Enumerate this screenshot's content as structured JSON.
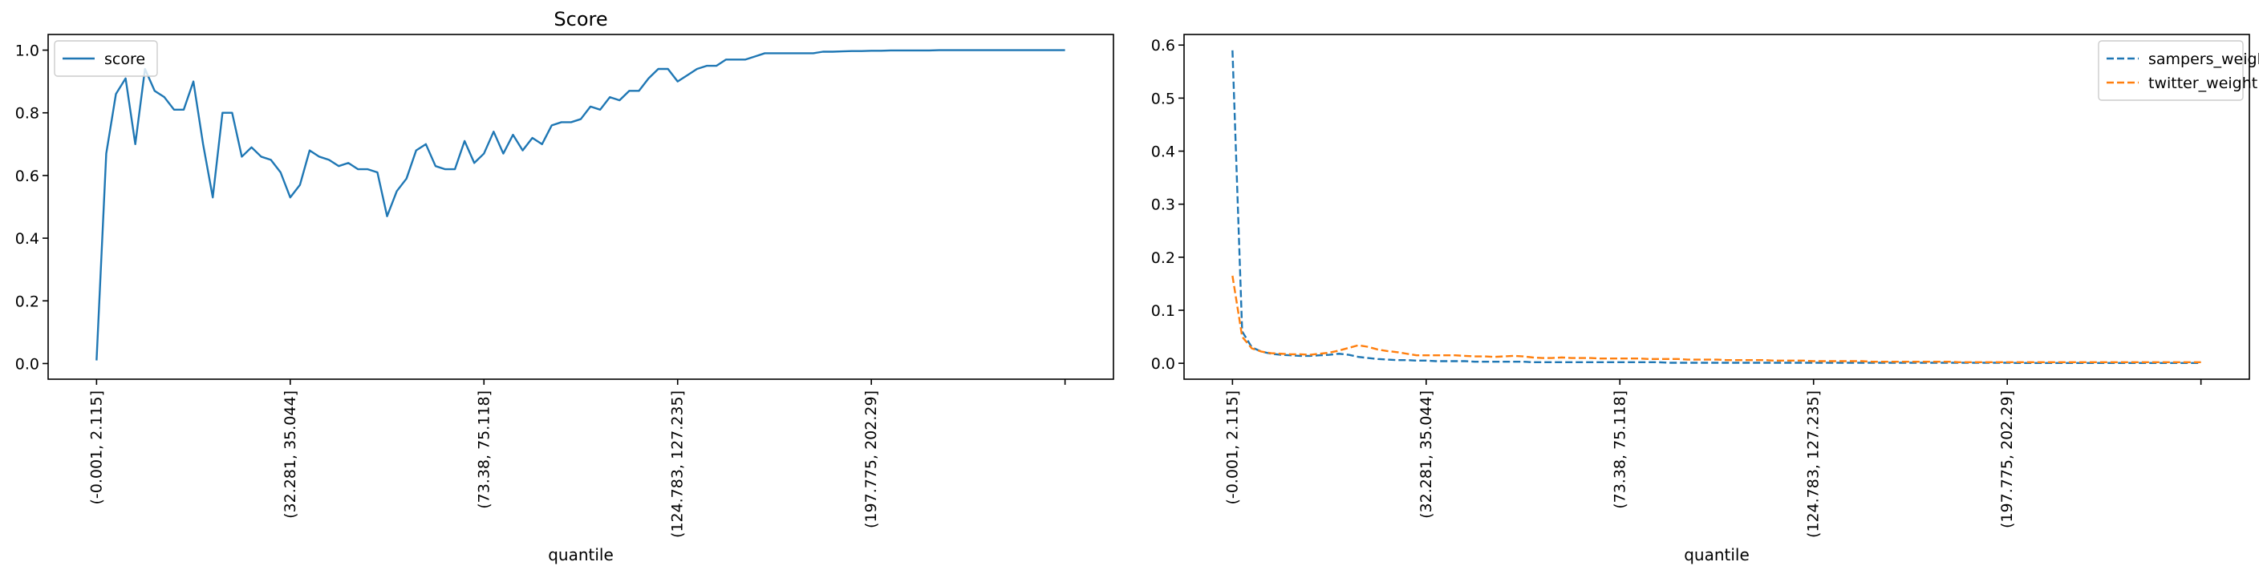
{
  "chart_data": [
    {
      "type": "line",
      "title": "Score",
      "xlabel": "quantile",
      "ylabel": "",
      "xlim": [
        -5,
        105
      ],
      "ylim": [
        -0.05,
        1.05
      ],
      "yticks": [
        0.0,
        0.2,
        0.4,
        0.6,
        0.8,
        1.0
      ],
      "ytick_labels": [
        "0.0",
        "0.2",
        "0.4",
        "0.6",
        "0.8",
        "1.0"
      ],
      "xtick_positions": [
        0,
        20,
        40,
        60,
        80,
        100
      ],
      "xtick_labels": [
        "(-0.001, 2.115]",
        "(32.281, 35.044]",
        "(73.38, 75.118]",
        "(124.783, 127.235]",
        "(197.775, 202.29]",
        ""
      ],
      "legend": {
        "position": "upper left",
        "entries": [
          "score"
        ]
      },
      "series": [
        {
          "name": "score",
          "color": "#1f77b4",
          "dash": "solid",
          "values": [
            0.01,
            0.67,
            0.86,
            0.91,
            0.7,
            0.94,
            0.87,
            0.85,
            0.81,
            0.81,
            0.9,
            0.7,
            0.53,
            0.8,
            0.8,
            0.66,
            0.69,
            0.66,
            0.65,
            0.61,
            0.53,
            0.57,
            0.68,
            0.66,
            0.65,
            0.63,
            0.64,
            0.62,
            0.62,
            0.61,
            0.47,
            0.55,
            0.59,
            0.68,
            0.7,
            0.63,
            0.62,
            0.62,
            0.71,
            0.64,
            0.67,
            0.74,
            0.67,
            0.73,
            0.68,
            0.72,
            0.7,
            0.76,
            0.77,
            0.77,
            0.78,
            0.82,
            0.81,
            0.85,
            0.84,
            0.87,
            0.87,
            0.91,
            0.94,
            0.94,
            0.9,
            0.92,
            0.94,
            0.95,
            0.95,
            0.97,
            0.97,
            0.97,
            0.98,
            0.99,
            0.99,
            0.99,
            0.99,
            0.99,
            0.99,
            0.995,
            0.995,
            0.996,
            0.997,
            0.997,
            0.998,
            0.998,
            0.999,
            0.999,
            0.999,
            0.999,
            0.999,
            1.0,
            1.0,
            1.0,
            1.0,
            1.0,
            1.0,
            1.0,
            1.0,
            1.0,
            1.0,
            1.0,
            1.0,
            1.0,
            1.0
          ]
        }
      ]
    },
    {
      "type": "line",
      "title": "",
      "xlabel": "quantile",
      "ylabel": "",
      "xlim": [
        -5,
        105
      ],
      "ylim": [
        -0.03,
        0.62
      ],
      "yticks": [
        0.0,
        0.1,
        0.2,
        0.3,
        0.4,
        0.5,
        0.6
      ],
      "ytick_labels": [
        "0.0",
        "0.1",
        "0.2",
        "0.3",
        "0.4",
        "0.5",
        "0.6"
      ],
      "xtick_positions": [
        0,
        20,
        40,
        60,
        80,
        100
      ],
      "xtick_labels": [
        "(-0.001, 2.115]",
        "(32.281, 35.044]",
        "(73.38, 75.118]",
        "(124.783, 127.235]",
        "(197.775, 202.29]",
        ""
      ],
      "legend": {
        "position": "upper right",
        "entries": [
          "sampers_weight",
          "twitter_weight"
        ]
      },
      "series": [
        {
          "name": "sampers_weight",
          "color": "#1f77b4",
          "dash": "dashed",
          "values": [
            0.59,
            0.06,
            0.03,
            0.022,
            0.018,
            0.016,
            0.015,
            0.014,
            0.014,
            0.015,
            0.016,
            0.018,
            0.016,
            0.012,
            0.01,
            0.008,
            0.007,
            0.006,
            0.006,
            0.005,
            0.005,
            0.004,
            0.004,
            0.004,
            0.004,
            0.003,
            0.003,
            0.003,
            0.003,
            0.003,
            0.003,
            0.002,
            0.002,
            0.002,
            0.002,
            0.002,
            0.002,
            0.002,
            0.002,
            0.002,
            0.002,
            0.002,
            0.002,
            0.002,
            0.002,
            0.001,
            0.001,
            0.001,
            0.001,
            0.001,
            0.001,
            0.001,
            0.001,
            0.001,
            0.001,
            0.001,
            0.001,
            0.001,
            0.001,
            0.001,
            0.001,
            0.001,
            0.001,
            0.001,
            0.001,
            0.001,
            0.001,
            0.001,
            0.001,
            0.001,
            0.001,
            0.001,
            0.001,
            0.001,
            0.001,
            0.001,
            0.001,
            0.001,
            0.001,
            0.001,
            0.001,
            0.0005,
            0.0005,
            0.0005,
            0.0005,
            0.0005,
            0.0005,
            0.0005,
            0.0005,
            0.0005,
            0.0005,
            0.0005,
            0.0005,
            0.0005,
            0.0005,
            0.0005,
            0.0005,
            0.0005,
            0.0005,
            0.0005,
            0.0005
          ]
        },
        {
          "name": "twitter_weight",
          "color": "#ff7f0e",
          "dash": "dashed",
          "values": [
            0.165,
            0.05,
            0.028,
            0.022,
            0.019,
            0.018,
            0.017,
            0.017,
            0.016,
            0.018,
            0.02,
            0.024,
            0.029,
            0.034,
            0.031,
            0.026,
            0.023,
            0.021,
            0.018,
            0.015,
            0.015,
            0.015,
            0.015,
            0.015,
            0.014,
            0.013,
            0.013,
            0.012,
            0.013,
            0.014,
            0.013,
            0.011,
            0.01,
            0.01,
            0.011,
            0.01,
            0.01,
            0.01,
            0.009,
            0.009,
            0.009,
            0.009,
            0.009,
            0.008,
            0.008,
            0.008,
            0.008,
            0.007,
            0.007,
            0.007,
            0.007,
            0.006,
            0.006,
            0.006,
            0.006,
            0.006,
            0.005,
            0.005,
            0.005,
            0.005,
            0.004,
            0.004,
            0.004,
            0.004,
            0.004,
            0.004,
            0.003,
            0.003,
            0.003,
            0.003,
            0.003,
            0.003,
            0.003,
            0.003,
            0.003,
            0.002,
            0.002,
            0.002,
            0.002,
            0.002,
            0.002,
            0.002,
            0.002,
            0.002,
            0.002,
            0.002,
            0.002,
            0.002,
            0.002,
            0.002,
            0.002,
            0.002,
            0.002,
            0.002,
            0.002,
            0.002,
            0.002,
            0.002,
            0.002,
            0.002,
            0.002
          ]
        }
      ]
    }
  ]
}
